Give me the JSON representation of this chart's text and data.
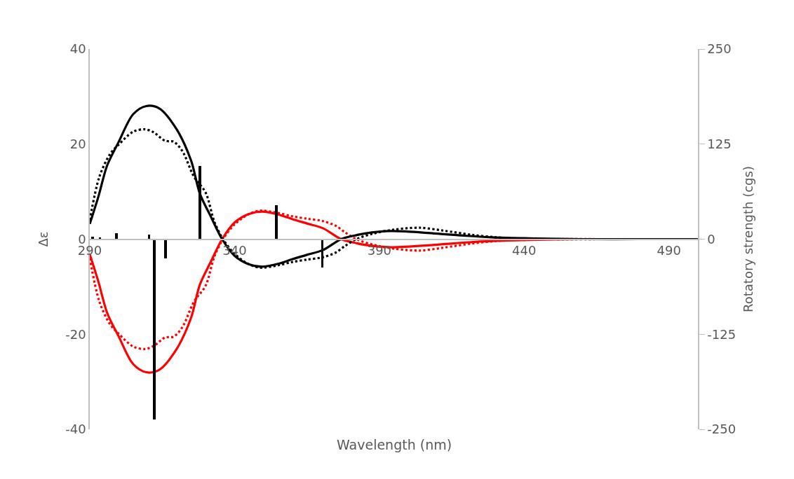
{
  "chart_data": {
    "type": "line",
    "xlabel": "Wavelength (nm)",
    "ylabel": "Δε",
    "y2label": "Rotatory strength (cgs)",
    "xlim": [
      290,
      500
    ],
    "xticks": [
      290,
      340,
      390,
      440,
      490
    ],
    "ylim": [
      -40,
      40
    ],
    "yticks": [
      -40,
      -20,
      0,
      20,
      40
    ],
    "y2lim": [
      -250,
      250
    ],
    "y2ticks": [
      -250,
      -125,
      0,
      125,
      250
    ],
    "grid": false,
    "series": [
      {
        "line_style": "solid",
        "color": "#000000",
        "x": [
          290,
          293,
          296,
          300,
          305,
          309.5,
          314,
          320,
          325,
          328,
          332,
          335.7,
          340,
          345,
          349.5,
          355,
          360,
          365,
          370.5,
          376.8,
          381,
          385,
          394,
          409,
          420,
          429,
          440,
          448,
          460,
          480,
          500
        ],
        "values": [
          3.2,
          9,
          15.5,
          20.5,
          26.3,
          28,
          27.5,
          23.1,
          16.5,
          9.6,
          4.5,
          0,
          -3.5,
          -5.3,
          -5.8,
          -5.2,
          -4.2,
          -3.3,
          -2.3,
          0,
          0.7,
          1.2,
          1.7,
          1.2,
          0.7,
          0.4,
          0.2,
          0.1,
          0,
          0,
          0
        ]
      },
      {
        "line_style": "dotted",
        "color": "#000000",
        "x": [
          290,
          293.3,
          297,
          300,
          305,
          309,
          312,
          316,
          319,
          322,
          326,
          330,
          333,
          336,
          340,
          345,
          349,
          355,
          360,
          365,
          370.5,
          375,
          378,
          382,
          388,
          395,
          404,
          412,
          422,
          430,
          438,
          450,
          470,
          500
        ],
        "values": [
          4,
          13.1,
          17.9,
          19.9,
          22.6,
          23.1,
          22.5,
          20.7,
          20.5,
          18.5,
          13.1,
          9.8,
          3.7,
          0,
          -3.1,
          -5.3,
          -6,
          -5.5,
          -4.8,
          -4.3,
          -3.8,
          -2.8,
          -1.5,
          0,
          1.2,
          2,
          2.4,
          1.8,
          0.9,
          0.4,
          0.1,
          0,
          0,
          0
        ]
      },
      {
        "line_style": "solid",
        "color": "#ff0000",
        "x": [
          290,
          293,
          296,
          300,
          305,
          309.5,
          314,
          320,
          325,
          328,
          332,
          335.7,
          340,
          345,
          349.5,
          355,
          360,
          365,
          370.5,
          376.8,
          381,
          385,
          394,
          409,
          420,
          429,
          440,
          448,
          460
        ],
        "values": [
          -3.2,
          -9,
          -15.5,
          -20.5,
          -26.3,
          -28,
          -27.5,
          -23.1,
          -16.5,
          -9.6,
          -4.5,
          0,
          3.5,
          5.3,
          5.8,
          5.2,
          4.2,
          3.3,
          2.3,
          0,
          -0.7,
          -1.2,
          -1.7,
          -1.2,
          -0.7,
          -0.4,
          -0.2,
          -0.1,
          0
        ]
      },
      {
        "line_style": "dotted",
        "color": "#ff0000",
        "x": [
          290,
          293.3,
          297,
          300,
          305,
          309,
          312,
          316,
          319,
          322,
          326,
          330,
          333,
          336,
          340,
          345,
          349,
          355,
          360,
          365,
          370.5,
          375,
          378,
          382,
          388,
          395,
          404,
          412,
          422,
          430,
          438,
          450,
          470,
          500
        ],
        "values": [
          -4,
          -13.1,
          -17.9,
          -19.9,
          -22.6,
          -23.1,
          -22.5,
          -20.7,
          -20.5,
          -18.5,
          -13.1,
          -9.8,
          -3.7,
          0,
          3.1,
          5.3,
          6,
          5.5,
          4.8,
          4.3,
          3.8,
          2.8,
          1.5,
          0,
          -1.2,
          -2,
          -2.4,
          -1.8,
          -0.9,
          -0.4,
          -0.1,
          0,
          0,
          0
        ]
      },
      {
        "type": "bar",
        "axis": "y2",
        "color": "#000000",
        "x": [
          290.9,
          293.5,
          299.2,
          310.5,
          312.3,
          316.2,
          328.1,
          354.5,
          370.3
        ],
        "values": [
          3,
          2,
          8,
          6,
          -237,
          -25,
          96,
          45,
          -37
        ]
      }
    ]
  }
}
